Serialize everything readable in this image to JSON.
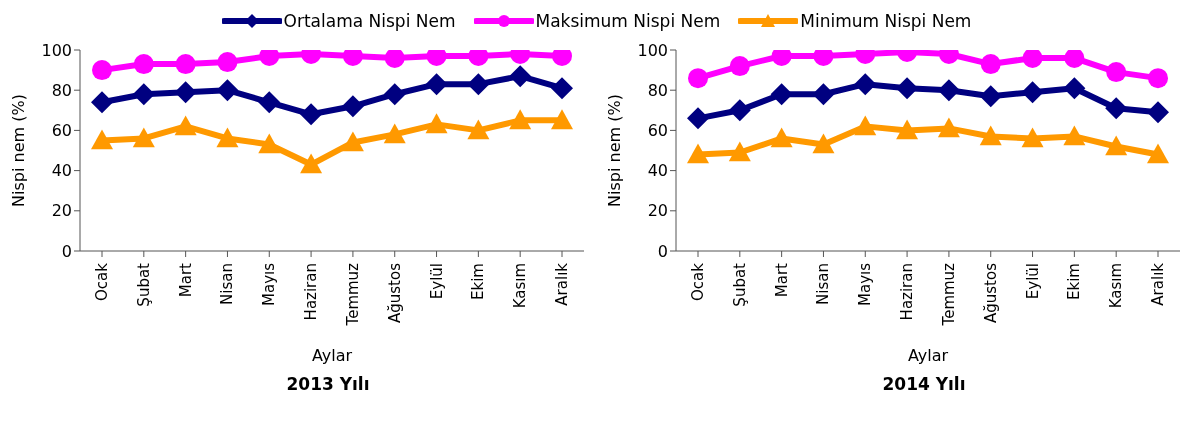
{
  "chart_data": [
    {
      "type": "line",
      "title": "2013 Yılı",
      "xlabel": "Aylar",
      "ylabel": "Nispi nem (%)",
      "categories": [
        "Ocak",
        "Şubat",
        "Mart",
        "Nisan",
        "Mayıs",
        "Haziran",
        "Temmuz",
        "Ağustos",
        "Eylül",
        "Ekim",
        "Kasım",
        "Aralık"
      ],
      "ylim": [
        0,
        100
      ],
      "yticks": [
        0,
        20,
        40,
        60,
        80,
        100
      ],
      "grid": false,
      "legend": "top",
      "series": [
        {
          "name": "Ortalama Nispi Nem",
          "color": "#000080",
          "marker": "diamond",
          "values": [
            74,
            78,
            79,
            80,
            74,
            68,
            72,
            78,
            83,
            83,
            87,
            81
          ]
        },
        {
          "name": "Maksimum Nispi Nem",
          "color": "#ff00ff",
          "marker": "circle",
          "values": [
            90,
            93,
            93,
            94,
            97,
            98,
            97,
            96,
            97,
            97,
            98,
            97
          ]
        },
        {
          "name": "Minimum Nispi Nem",
          "color": "#ff9900",
          "marker": "triangle",
          "values": [
            55,
            56,
            62,
            56,
            53,
            43,
            54,
            58,
            63,
            60,
            65,
            65
          ]
        }
      ]
    },
    {
      "type": "line",
      "title": "2014 Yılı",
      "xlabel": "Aylar",
      "ylabel": "Nispi nem (%)",
      "categories": [
        "Ocak",
        "Şubat",
        "Mart",
        "Nisan",
        "Mayıs",
        "Haziran",
        "Temmuz",
        "Ağustos",
        "Eylül",
        "Ekim",
        "Kasım",
        "Aralık"
      ],
      "ylim": [
        0,
        100
      ],
      "yticks": [
        0,
        20,
        40,
        60,
        80,
        100
      ],
      "grid": false,
      "series": [
        {
          "color": "#000080",
          "marker": "diamond",
          "values": [
            66,
            70,
            78,
            78,
            83,
            81,
            80,
            77,
            79,
            81,
            71,
            69
          ]
        },
        {
          "color": "#ff00ff",
          "marker": "circle",
          "values": [
            86,
            92,
            97,
            97,
            98,
            99,
            98,
            93,
            96,
            96,
            89,
            86
          ]
        },
        {
          "color": "#ff9900",
          "marker": "triangle",
          "values": [
            48,
            49,
            56,
            53,
            62,
            60,
            61,
            57,
            56,
            57,
            52,
            48
          ]
        }
      ]
    }
  ]
}
